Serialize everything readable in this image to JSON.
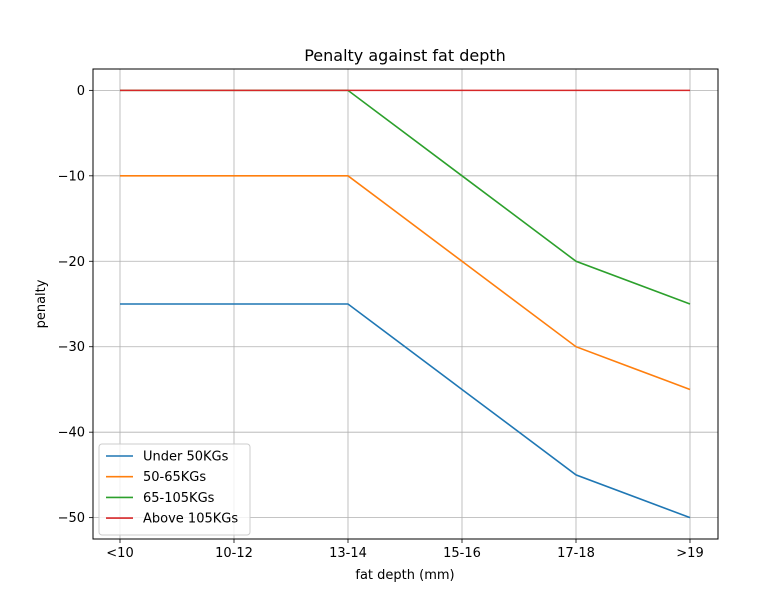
{
  "chart_data": {
    "type": "line",
    "title": "Penalty against fat depth",
    "xlabel": "fat depth (mm)",
    "ylabel": "penalty",
    "categories": [
      "<10",
      "10-12",
      "13-14",
      "15-16",
      "17-18",
      ">19"
    ],
    "ylim": [
      -52.5,
      2.5
    ],
    "yticks": [
      0,
      -10,
      -20,
      -30,
      -40,
      -50
    ],
    "grid": true,
    "legend_position": "lower-left",
    "series": [
      {
        "name": "Under 50KGs",
        "color": "#1f77b4",
        "values": [
          -25,
          -25,
          -25,
          -35,
          -45,
          -50
        ]
      },
      {
        "name": "50-65KGs",
        "color": "#ff7f0e",
        "values": [
          -10,
          -10,
          -10,
          -20,
          -30,
          -35
        ]
      },
      {
        "name": "65-105KGs",
        "color": "#2ca02c",
        "values": [
          0,
          0,
          0,
          -10,
          -20,
          -25
        ]
      },
      {
        "name": "Above 105KGs",
        "color": "#d62728",
        "values": [
          0,
          0,
          0,
          0,
          0,
          0
        ]
      }
    ]
  }
}
